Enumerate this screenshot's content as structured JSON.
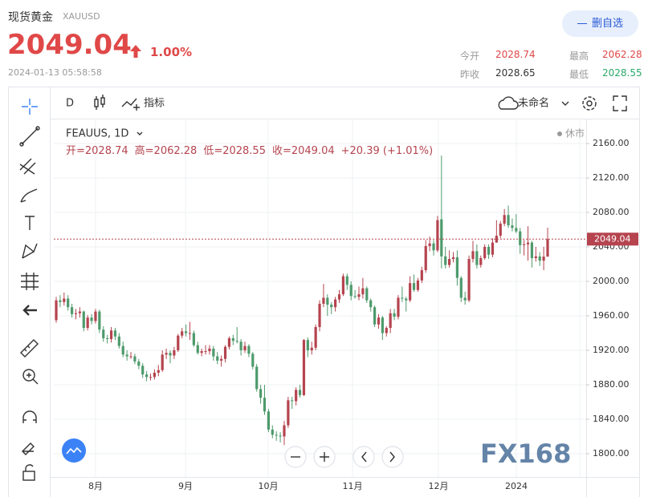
{
  "header": {
    "title": "现货黄金",
    "symbol": "XAUUSD",
    "price": "2049.04",
    "change": "1.00%",
    "time": "2024-01-13 05:58:58",
    "button": "删自选",
    "stats": [
      {
        "label": "今开",
        "value": "2028.74"
      },
      {
        "label": "最高",
        "value": "2062.28"
      },
      {
        "label": "昨收",
        "value": "2028.65"
      },
      {
        "label": "最低",
        "value": "2028.55"
      }
    ]
  },
  "toolbar": {
    "interval": "D",
    "indicators": "指标",
    "layout": "未命名"
  },
  "chart_data": {
    "type": "candlestick",
    "symbol": "FEAUUS, 1D",
    "status": "休市",
    "legend": [
      "开=2028.74",
      "高=2062.28",
      "低=2028.55",
      "收=2049.04",
      "+20.39 (+1.01%)"
    ],
    "up_color": "#b5444f",
    "down_color": "#4e9a6c",
    "grid": true,
    "last_price": 2049.04,
    "ylim": [
      1773,
      2187
    ],
    "yticks": [
      {
        "value": 1800,
        "label": "1800.00"
      },
      {
        "value": 1840,
        "label": "1840.00"
      },
      {
        "value": 1880,
        "label": "1880.00"
      },
      {
        "value": 1920,
        "label": "1920.00"
      },
      {
        "value": 1960,
        "label": "1960.00"
      },
      {
        "value": 2000,
        "label": "2000.00"
      },
      {
        "value": 2040,
        "label": "2040.00"
      },
      {
        "value": 2080,
        "label": "2080.00"
      },
      {
        "value": 2120,
        "label": "2120.00"
      },
      {
        "value": 2160,
        "label": "2160.00"
      }
    ],
    "xlabels": [
      "8月",
      "9月",
      "10月",
      "11月",
      "12月",
      "2024"
    ],
    "watermark": "FX168",
    "candles": [
      [
        1955,
        1982,
        1952,
        1978
      ],
      [
        1978,
        1984,
        1970,
        1976
      ],
      [
        1976,
        1987,
        1972,
        1980
      ],
      [
        1980,
        1984,
        1966,
        1970
      ],
      [
        1970,
        1974,
        1958,
        1962
      ],
      [
        1962,
        1968,
        1956,
        1963
      ],
      [
        1963,
        1970,
        1958,
        1965
      ],
      [
        1965,
        1966,
        1942,
        1946
      ],
      [
        1946,
        1961,
        1943,
        1958
      ],
      [
        1958,
        1962,
        1950,
        1954
      ],
      [
        1954,
        1968,
        1951,
        1965
      ],
      [
        1965,
        1967,
        1940,
        1944
      ],
      [
        1944,
        1948,
        1930,
        1934
      ],
      [
        1934,
        1938,
        1928,
        1933
      ],
      [
        1933,
        1947,
        1929,
        1943
      ],
      [
        1943,
        1946,
        1932,
        1936
      ],
      [
        1936,
        1940,
        1922,
        1925
      ],
      [
        1925,
        1930,
        1912,
        1915
      ],
      [
        1915,
        1920,
        1908,
        1913
      ],
      [
        1913,
        1918,
        1910,
        1913
      ],
      [
        1913,
        1916,
        1904,
        1907
      ],
      [
        1907,
        1910,
        1898,
        1902
      ],
      [
        1902,
        1905,
        1888,
        1892
      ],
      [
        1892,
        1896,
        1884,
        1889
      ],
      [
        1889,
        1893,
        1885,
        1889
      ],
      [
        1889,
        1898,
        1886,
        1894
      ],
      [
        1894,
        1903,
        1890,
        1897
      ],
      [
        1897,
        1920,
        1895,
        1915
      ],
      [
        1915,
        1922,
        1910,
        1917
      ],
      [
        1917,
        1920,
        1905,
        1914
      ],
      [
        1914,
        1924,
        1910,
        1920
      ],
      [
        1920,
        1939,
        1918,
        1937
      ],
      [
        1937,
        1946,
        1934,
        1942
      ],
      [
        1942,
        1950,
        1936,
        1940
      ],
      [
        1940,
        1953,
        1932,
        1940
      ],
      [
        1940,
        1943,
        1924,
        1926
      ],
      [
        1926,
        1930,
        1915,
        1917
      ],
      [
        1917,
        1922,
        1913,
        1919
      ],
      [
        1919,
        1926,
        1915,
        1919
      ],
      [
        1919,
        1926,
        1915,
        1922
      ],
      [
        1922,
        1925,
        1908,
        1913
      ],
      [
        1913,
        1918,
        1904,
        1908
      ],
      [
        1908,
        1914,
        1901,
        1910
      ],
      [
        1910,
        1926,
        1906,
        1924
      ],
      [
        1924,
        1936,
        1921,
        1934
      ],
      [
        1934,
        1938,
        1926,
        1931
      ],
      [
        1931,
        1947,
        1928,
        1930
      ],
      [
        1930,
        1933,
        1914,
        1920
      ],
      [
        1920,
        1930,
        1917,
        1925
      ],
      [
        1925,
        1927,
        1912,
        1916
      ],
      [
        1916,
        1918,
        1898,
        1901
      ],
      [
        1901,
        1904,
        1872,
        1875
      ],
      [
        1875,
        1880,
        1858,
        1865
      ],
      [
        1865,
        1880,
        1845,
        1849
      ],
      [
        1849,
        1852,
        1825,
        1828
      ],
      [
        1828,
        1833,
        1818,
        1822
      ],
      [
        1822,
        1826,
        1815,
        1821
      ],
      [
        1821,
        1825,
        1813,
        1820
      ],
      [
        1820,
        1838,
        1810,
        1833
      ],
      [
        1833,
        1866,
        1830,
        1862
      ],
      [
        1862,
        1866,
        1852,
        1861
      ],
      [
        1861,
        1877,
        1856,
        1874
      ],
      [
        1874,
        1880,
        1865,
        1868
      ],
      [
        1868,
        1933,
        1867,
        1932
      ],
      [
        1932,
        1935,
        1912,
        1920
      ],
      [
        1920,
        1930,
        1915,
        1923
      ],
      [
        1923,
        1950,
        1920,
        1947
      ],
      [
        1947,
        1978,
        1942,
        1974
      ],
      [
        1974,
        1997,
        1970,
        1981
      ],
      [
        1981,
        1985,
        1960,
        1973
      ],
      [
        1973,
        1976,
        1962,
        1970
      ],
      [
        1970,
        1982,
        1965,
        1979
      ],
      [
        1979,
        1990,
        1975,
        1985
      ],
      [
        1985,
        2009,
        1983,
        2006
      ],
      [
        2006,
        2009,
        1990,
        1996
      ],
      [
        1996,
        2000,
        1978,
        1983
      ],
      [
        1983,
        1990,
        1980,
        1982
      ],
      [
        1982,
        1994,
        1978,
        1985
      ],
      [
        1985,
        2004,
        1980,
        1992
      ],
      [
        1992,
        1994,
        1975,
        1978
      ],
      [
        1978,
        1980,
        1965,
        1970
      ],
      [
        1970,
        1972,
        1947,
        1950
      ],
      [
        1950,
        1962,
        1945,
        1958
      ],
      [
        1958,
        1960,
        1932,
        1940
      ],
      [
        1940,
        1948,
        1936,
        1946
      ],
      [
        1946,
        1968,
        1940,
        1963
      ],
      [
        1963,
        1968,
        1955,
        1959
      ],
      [
        1959,
        1984,
        1956,
        1981
      ],
      [
        1981,
        1994,
        1976,
        1980
      ],
      [
        1980,
        1982,
        1965,
        1978
      ],
      [
        1978,
        2006,
        1976,
        1998
      ],
      [
        1998,
        2008,
        1988,
        1990
      ],
      [
        1990,
        2004,
        1988,
        2001
      ],
      [
        2001,
        2017,
        1998,
        2013
      ],
      [
        2013,
        2048,
        2010,
        2041
      ],
      [
        2041,
        2052,
        2035,
        2044
      ],
      [
        2044,
        2048,
        2030,
        2036
      ],
      [
        2036,
        2076,
        2034,
        2071
      ],
      [
        2072,
        2146,
        2015,
        2029
      ],
      [
        2029,
        2040,
        2015,
        2019
      ],
      [
        2019,
        2036,
        2016,
        2026
      ],
      [
        2026,
        2034,
        2022,
        2028
      ],
      [
        2028,
        2036,
        1995,
        2004
      ],
      [
        2004,
        2006,
        1976,
        1981
      ],
      [
        1981,
        1988,
        1973,
        1978
      ],
      [
        1978,
        2030,
        1976,
        2026
      ],
      [
        2026,
        2047,
        2022,
        2035
      ],
      [
        2035,
        2043,
        2015,
        2019
      ],
      [
        2019,
        2030,
        2016,
        2027
      ],
      [
        2027,
        2043,
        2025,
        2040
      ],
      [
        2040,
        2043,
        2026,
        2031
      ],
      [
        2031,
        2050,
        2028,
        2045
      ],
      [
        2045,
        2071,
        2045,
        2053
      ],
      [
        2053,
        2070,
        2050,
        2067
      ],
      [
        2067,
        2084,
        2064,
        2077
      ],
      [
        2077,
        2088,
        2062,
        2065
      ],
      [
        2065,
        2073,
        2058,
        2062
      ],
      [
        2062,
        2078,
        2056,
        2058
      ],
      [
        2058,
        2062,
        2032,
        2042
      ],
      [
        2042,
        2048,
        2030,
        2043
      ],
      [
        2043,
        2064,
        2024,
        2045
      ],
      [
        2045,
        2047,
        2016,
        2027
      ],
      [
        2027,
        2040,
        2023,
        2029
      ],
      [
        2029,
        2034,
        2018,
        2024
      ],
      [
        2024,
        2040,
        2013,
        2028.74
      ],
      [
        2028.74,
        2062.28,
        2028.55,
        2049.04
      ]
    ]
  }
}
